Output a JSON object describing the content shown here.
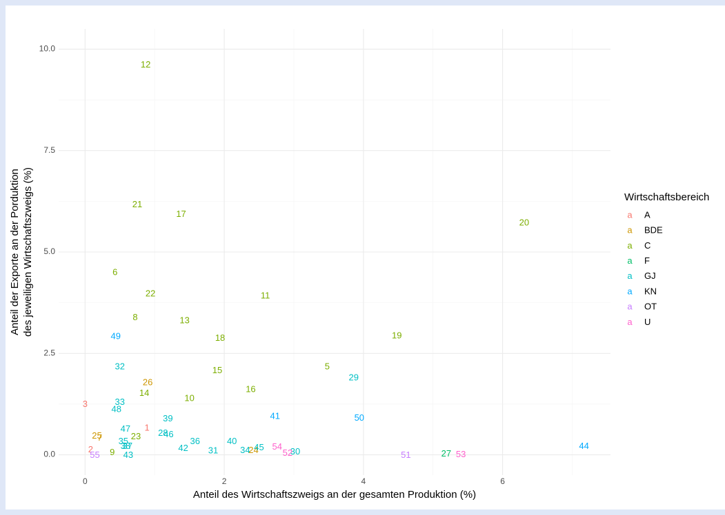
{
  "chart_data": {
    "type": "text-scatter",
    "xlabel": "Anteil des Wirtschaftszweigs an der gesamten Produktion (%)",
    "ylabel": [
      "Anteil der Exporte an der Porduktion",
      "des jeweiligen Wirtschaftszweigs (%)"
    ],
    "legend_title": "Wirtschaftsbereich",
    "legend_key": "a",
    "legend": "right",
    "grid": true,
    "xlim": [
      -0.38,
      7.55
    ],
    "ylim": [
      -0.5,
      10.5
    ],
    "xticks": [
      0,
      2,
      4,
      6
    ],
    "yticks": [
      {
        "value": 0,
        "label": "0.0"
      },
      2.5,
      {
        "value": 5,
        "label": "5.0"
      },
      7.5,
      {
        "value": 10,
        "label": "10.0"
      }
    ],
    "x_minor_grid": [
      1,
      3,
      5,
      7
    ],
    "y_minor_grid": [
      1.25,
      3.75,
      6.25,
      8.75
    ],
    "series": [
      {
        "name": "A",
        "color": "#F8766D",
        "labels": [
          "3",
          "2",
          "1"
        ],
        "x": [
          0.0,
          0.08,
          0.89
        ],
        "y": [
          1.24,
          0.12,
          0.65
        ]
      },
      {
        "name": "BDE",
        "color": "#CD9600",
        "labels": [
          "25",
          "7",
          "26",
          "24"
        ],
        "x": [
          0.17,
          0.21,
          0.9,
          2.42
        ],
        "y": [
          0.46,
          0.41,
          1.77,
          0.1
        ]
      },
      {
        "name": "C",
        "color": "#7CAE00",
        "labels": [
          "12",
          "21",
          "17",
          "20",
          "6",
          "22",
          "11",
          "8",
          "13",
          "18",
          "19",
          "5",
          "15",
          "16",
          "14",
          "10",
          "9",
          "23"
        ],
        "x": [
          0.87,
          0.75,
          1.38,
          6.31,
          0.43,
          0.94,
          2.59,
          0.72,
          1.43,
          1.94,
          4.48,
          3.48,
          1.9,
          2.38,
          0.85,
          1.5,
          0.39,
          0.73
        ],
        "y": [
          9.61,
          6.16,
          5.92,
          5.71,
          4.49,
          3.96,
          3.91,
          3.38,
          3.3,
          2.87,
          2.93,
          2.16,
          2.07,
          1.6,
          1.51,
          1.38,
          0.05,
          0.44
        ]
      },
      {
        "name": "F",
        "color": "#00BE67",
        "labels": [
          "27"
        ],
        "x": [
          5.19
        ],
        "y": [
          0.02
        ]
      },
      {
        "name": "GJ",
        "color": "#00BFC4",
        "labels": [
          "32",
          "33",
          "48",
          "47",
          "39",
          "28",
          "46",
          "35",
          "37",
          "38",
          "36",
          "42",
          "31",
          "40",
          "34",
          "45",
          "43",
          "30",
          "29"
        ],
        "x": [
          0.5,
          0.5,
          0.45,
          0.58,
          1.19,
          1.12,
          1.2,
          0.55,
          0.61,
          0.58,
          1.58,
          1.41,
          1.84,
          2.11,
          2.3,
          2.5,
          0.62,
          3.02,
          3.86
        ],
        "y": [
          2.16,
          1.29,
          1.11,
          0.63,
          0.88,
          0.53,
          0.49,
          0.32,
          0.2,
          0.2,
          0.32,
          0.15,
          0.09,
          0.32,
          0.1,
          0.17,
          -0.02,
          0.07,
          1.89
        ]
      },
      {
        "name": "KN",
        "color": "#00A9FF",
        "labels": [
          "49",
          "41",
          "50",
          "44"
        ],
        "x": [
          0.44,
          2.73,
          3.94,
          7.17
        ],
        "y": [
          2.91,
          0.94,
          0.9,
          0.2
        ]
      },
      {
        "name": "OT",
        "color": "#C77CFF",
        "labels": [
          "55",
          "51"
        ],
        "x": [
          0.14,
          4.61
        ],
        "y": [
          -0.02,
          -0.02
        ]
      },
      {
        "name": "U",
        "color": "#FF61CC",
        "labels": [
          "54",
          "52",
          "53"
        ],
        "x": [
          2.76,
          2.91,
          5.4
        ],
        "y": [
          0.19,
          0.03,
          0.0
        ]
      }
    ]
  }
}
